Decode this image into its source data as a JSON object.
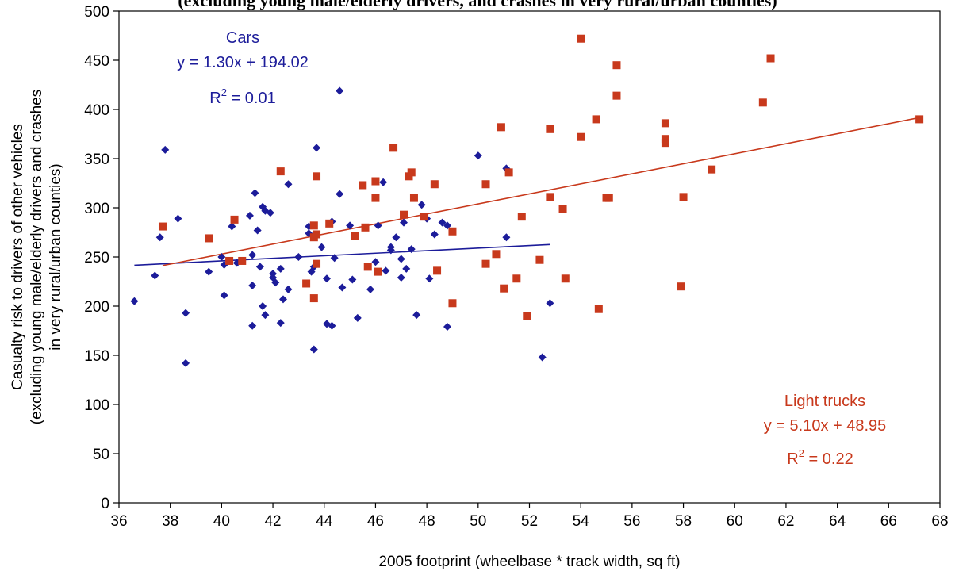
{
  "header_fragment": "(excluding young male/elderly drivers, and crashes in very rural/urban counties)",
  "chart_data": {
    "type": "scatter",
    "xlabel": "2005 footprint (wheelbase * track width, sq ft)",
    "ylabel_lines": [
      "Casualty risk to drivers of other vehicles",
      "(excluding young male/elderly drivers and crashes",
      "in very rural/urban counties)"
    ],
    "xlim": [
      36,
      68
    ],
    "ylim": [
      0,
      500
    ],
    "xticks": [
      36,
      38,
      40,
      42,
      44,
      46,
      48,
      50,
      52,
      54,
      56,
      58,
      60,
      62,
      64,
      66,
      68
    ],
    "yticks": [
      0,
      50,
      100,
      150,
      200,
      250,
      300,
      350,
      400,
      450,
      500
    ],
    "grid": false,
    "series": [
      {
        "name": "Cars",
        "marker": "diamond",
        "color": "#1c1c9a",
        "equation": "y = 1.30x + 194.02",
        "r2_label": "R",
        "r2_sup": "2",
        "r2_value": " = 0.01",
        "trend": {
          "slope": 1.3,
          "intercept": 194.02,
          "x_range": [
            36.6,
            52.8
          ]
        },
        "points": [
          [
            36.6,
            205
          ],
          [
            37.4,
            231
          ],
          [
            37.6,
            270
          ],
          [
            37.8,
            359
          ],
          [
            38.3,
            289
          ],
          [
            38.6,
            193
          ],
          [
            38.6,
            142
          ],
          [
            39.5,
            235
          ],
          [
            40.0,
            250
          ],
          [
            40.1,
            242
          ],
          [
            40.1,
            211
          ],
          [
            40.4,
            281
          ],
          [
            40.6,
            244
          ],
          [
            41.1,
            292
          ],
          [
            41.2,
            252
          ],
          [
            41.2,
            221
          ],
          [
            41.2,
            180
          ],
          [
            41.3,
            315
          ],
          [
            41.4,
            277
          ],
          [
            41.5,
            240
          ],
          [
            41.6,
            301
          ],
          [
            41.6,
            200
          ],
          [
            41.7,
            191
          ],
          [
            41.7,
            297
          ],
          [
            41.9,
            295
          ],
          [
            42.0,
            233
          ],
          [
            42.0,
            229
          ],
          [
            42.1,
            224
          ],
          [
            42.3,
            238
          ],
          [
            42.3,
            183
          ],
          [
            42.4,
            207
          ],
          [
            42.6,
            324
          ],
          [
            42.6,
            217
          ],
          [
            43.0,
            250
          ],
          [
            43.4,
            281
          ],
          [
            43.4,
            274
          ],
          [
            43.5,
            235
          ],
          [
            43.6,
            156
          ],
          [
            43.6,
            240
          ],
          [
            43.7,
            361
          ],
          [
            43.9,
            260
          ],
          [
            44.1,
            182
          ],
          [
            44.1,
            228
          ],
          [
            44.3,
            180
          ],
          [
            44.3,
            286
          ],
          [
            44.4,
            249
          ],
          [
            44.6,
            314
          ],
          [
            44.6,
            419
          ],
          [
            44.7,
            219
          ],
          [
            45.0,
            282
          ],
          [
            45.1,
            227
          ],
          [
            45.3,
            188
          ],
          [
            45.8,
            217
          ],
          [
            46.0,
            245
          ],
          [
            46.1,
            282
          ],
          [
            46.3,
            326
          ],
          [
            46.6,
            257
          ],
          [
            46.6,
            260
          ],
          [
            46.8,
            270
          ],
          [
            47.0,
            229
          ],
          [
            47.1,
            285
          ],
          [
            47.2,
            238
          ],
          [
            47.4,
            258
          ],
          [
            47.6,
            191
          ],
          [
            47.8,
            303
          ],
          [
            48.0,
            289
          ],
          [
            48.1,
            228
          ],
          [
            48.3,
            273
          ],
          [
            48.6,
            285
          ],
          [
            48.8,
            282
          ],
          [
            48.8,
            179
          ],
          [
            50.0,
            353
          ],
          [
            51.1,
            340
          ],
          [
            51.1,
            270
          ],
          [
            52.5,
            148
          ],
          [
            52.8,
            203
          ],
          [
            47.0,
            248
          ],
          [
            46.4,
            236
          ]
        ]
      },
      {
        "name": "Light trucks",
        "marker": "square",
        "color": "#c8391c",
        "equation": "y = 5.10x + 48.95",
        "r2_label": "R",
        "r2_sup": "2",
        "r2_value": " = 0.22",
        "trend": {
          "slope": 5.1,
          "intercept": 48.95,
          "x_range": [
            37.7,
            67.2
          ]
        },
        "points": [
          [
            37.7,
            281
          ],
          [
            39.5,
            269
          ],
          [
            40.3,
            246
          ],
          [
            40.5,
            288
          ],
          [
            40.8,
            246
          ],
          [
            42.3,
            337
          ],
          [
            43.3,
            223
          ],
          [
            43.6,
            270
          ],
          [
            43.6,
            282
          ],
          [
            43.6,
            208
          ],
          [
            43.7,
            243
          ],
          [
            43.7,
            273
          ],
          [
            43.7,
            332
          ],
          [
            44.2,
            284
          ],
          [
            45.2,
            271
          ],
          [
            45.5,
            323
          ],
          [
            45.6,
            280
          ],
          [
            45.7,
            240
          ],
          [
            46.0,
            310
          ],
          [
            46.0,
            327
          ],
          [
            46.1,
            235
          ],
          [
            46.7,
            361
          ],
          [
            47.1,
            293
          ],
          [
            47.3,
            332
          ],
          [
            47.4,
            336
          ],
          [
            47.5,
            310
          ],
          [
            47.9,
            291
          ],
          [
            48.3,
            324
          ],
          [
            48.4,
            236
          ],
          [
            49.0,
            276
          ],
          [
            49.0,
            203
          ],
          [
            50.3,
            324
          ],
          [
            50.3,
            243
          ],
          [
            50.7,
            253
          ],
          [
            50.9,
            382
          ],
          [
            51.0,
            218
          ],
          [
            51.2,
            336
          ],
          [
            51.5,
            228
          ],
          [
            51.7,
            291
          ],
          [
            51.9,
            190
          ],
          [
            52.4,
            247
          ],
          [
            52.8,
            380
          ],
          [
            52.8,
            311
          ],
          [
            53.3,
            299
          ],
          [
            53.4,
            228
          ],
          [
            54.0,
            472
          ],
          [
            54.0,
            372
          ],
          [
            54.6,
            390
          ],
          [
            54.7,
            197
          ],
          [
            55.0,
            310
          ],
          [
            55.1,
            310
          ],
          [
            55.4,
            445
          ],
          [
            55.4,
            414
          ],
          [
            57.3,
            386
          ],
          [
            57.3,
            370
          ],
          [
            57.3,
            366
          ],
          [
            57.9,
            220
          ],
          [
            58.0,
            311
          ],
          [
            59.1,
            339
          ],
          [
            61.1,
            407
          ],
          [
            61.4,
            452
          ],
          [
            67.2,
            390
          ]
        ]
      }
    ]
  }
}
